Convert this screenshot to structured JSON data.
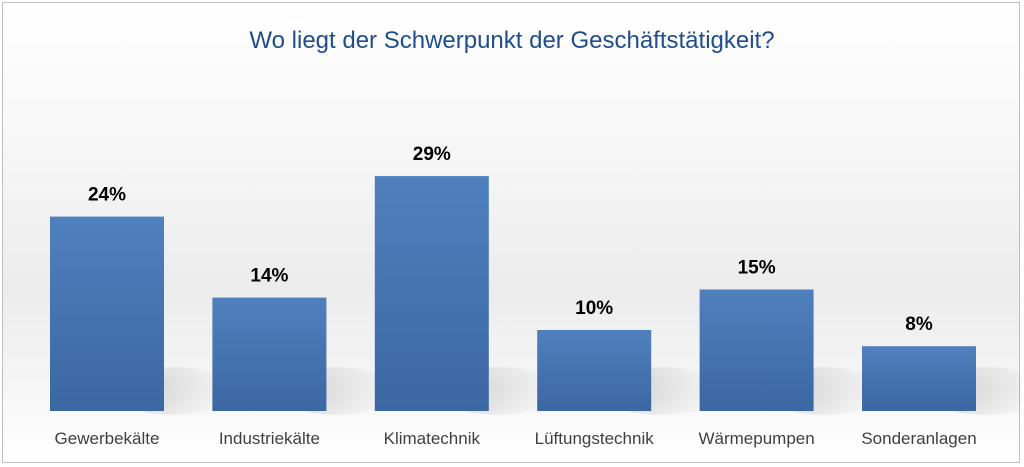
{
  "chart_data": {
    "type": "bar",
    "title": "Wo liegt der Schwerpunkt der Geschäftstätigkeit?",
    "categories": [
      "Gewerbekälte",
      "Industriekälte",
      "Klimatechnik",
      "Lüftungstechnik",
      "Wärmepumpen",
      "Sonderanlagen"
    ],
    "values": [
      24,
      14,
      29,
      10,
      15,
      8
    ],
    "value_labels": [
      "24%",
      "14%",
      "29%",
      "10%",
      "15%",
      "8%"
    ],
    "unit": "%",
    "ylim": [
      0,
      35
    ],
    "grid": false,
    "bar_color": "#4a7ab8",
    "bar_color_dark": "#3d6aa6"
  }
}
